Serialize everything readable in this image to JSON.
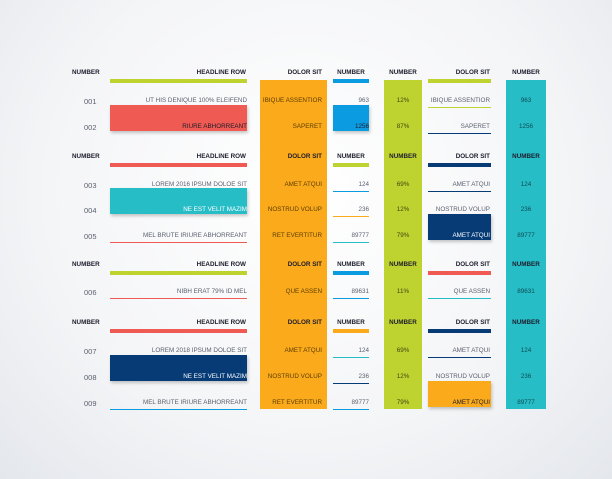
{
  "colors": {
    "green": "#bfd330",
    "red": "#ef5a52",
    "teal": "#27bdc7",
    "navy": "#063b76",
    "orange": "#fbaa1b",
    "blue": "#0b9be0",
    "text": "#1c1c2b",
    "dim": "#5a5f6e"
  },
  "headers": {
    "number": "NUMBER",
    "headline_row": "HEADLINE ROW",
    "dolor_sit": "DOLOR SIT"
  },
  "sections": [
    {
      "header_colors": {
        "headline": "green",
        "num2": "blue",
        "dolor2": "green"
      },
      "rows": [
        {
          "num": "001",
          "label": "UT HIS DENIQUE 100% ELEIFEND",
          "dolor1": "IBIQUE ASSENTIOR",
          "n1": "963",
          "pct": "12%",
          "dolor2": "IBIQUE ASSENTIOR",
          "n2": "963",
          "label_hl": null,
          "n1_hl": null,
          "dolor2_hl": null,
          "line_label": null,
          "line_n1": "blue",
          "line_dolor2": "green"
        },
        {
          "num": "002",
          "label": "RIURE ABHORREANT",
          "dolor1": "SAPERET",
          "n1": "1256",
          "pct": "87%",
          "dolor2": "SAPERET",
          "n2": "1256",
          "label_hl": "red",
          "n1_hl": "blue",
          "dolor2_hl": null,
          "line_label": null,
          "line_n1": null,
          "line_dolor2": "navy"
        }
      ]
    },
    {
      "header_colors": {
        "headline": "red",
        "num2": "green",
        "dolor2": "navy"
      },
      "rows": [
        {
          "num": "003",
          "label": "LOREM 2016 IPSUM DOLOE SIT",
          "dolor1": "AMET ATQUI",
          "n1": "124",
          "pct": "69%",
          "dolor2": "AMET ATQUI",
          "n2": "124",
          "label_hl": null,
          "n1_hl": null,
          "dolor2_hl": null,
          "line_label": null,
          "line_n1": "blue",
          "line_dolor2": "navy"
        },
        {
          "num": "004",
          "label": "NE EST VELIT MAZIM",
          "dolor1": "NOSTRUD VOLUP",
          "n1": "236",
          "pct": "12%",
          "dolor2": "NOSTRUD VOLUP",
          "n2": "236",
          "label_hl": "teal",
          "n1_hl": null,
          "dolor2_hl": null,
          "line_label": null,
          "line_n1": "orange",
          "line_dolor2": null
        },
        {
          "num": "005",
          "label": "MEL BRUTE IRIURE ABHORREANT",
          "dolor1": "RET EVERTITUR",
          "n1": "89777",
          "pct": "79%",
          "dolor2": "AMET ATQUI",
          "n2": "89777",
          "label_hl": null,
          "n1_hl": null,
          "dolor2_hl": "navy",
          "line_label": "red",
          "line_n1": "teal",
          "line_dolor2": null
        }
      ]
    },
    {
      "header_colors": {
        "headline": "green",
        "num2": "blue",
        "dolor2": "red"
      },
      "rows": [
        {
          "num": "006",
          "label": "NIBH ERAT 79% ID MEL",
          "dolor1": "QUE ASSEN",
          "n1": "89631",
          "pct": "11%",
          "dolor2": "QUE ASSEN",
          "n2": "89631",
          "label_hl": null,
          "n1_hl": null,
          "dolor2_hl": null,
          "line_label": "red",
          "line_n1": "blue",
          "line_dolor2": "teal"
        }
      ]
    },
    {
      "header_colors": {
        "headline": "red",
        "num2": "orange",
        "dolor2": "navy"
      },
      "rows": [
        {
          "num": "007",
          "label": "LOREM 2018 IPSUM DOLOE SIT",
          "dolor1": "AMET ATQUI",
          "n1": "124",
          "pct": "69%",
          "dolor2": "AMET ATQUI",
          "n2": "124",
          "label_hl": null,
          "n1_hl": null,
          "dolor2_hl": null,
          "line_label": "teal",
          "line_n1": "teal",
          "line_dolor2": "navy"
        },
        {
          "num": "008",
          "label": "NE EST VELIT MAZIM",
          "dolor1": "NOSTRUD VOLUP",
          "n1": "236",
          "pct": "12%",
          "dolor2": "NOSTRUD VOLUP",
          "n2": "236",
          "label_hl": "navy",
          "n1_hl": null,
          "dolor2_hl": null,
          "line_label": null,
          "line_n1": "navy",
          "line_dolor2": null
        },
        {
          "num": "009",
          "label": "MEL BRUTE IRIURE ABHORREANT",
          "dolor1": "RET EVERTITUR",
          "n1": "89777",
          "pct": "79%",
          "dolor2": "AMET ATQUI",
          "n2": "89777",
          "label_hl": null,
          "n1_hl": null,
          "dolor2_hl": "orange",
          "line_label": "blue",
          "line_n1": "blue",
          "line_dolor2": null
        }
      ]
    }
  ]
}
